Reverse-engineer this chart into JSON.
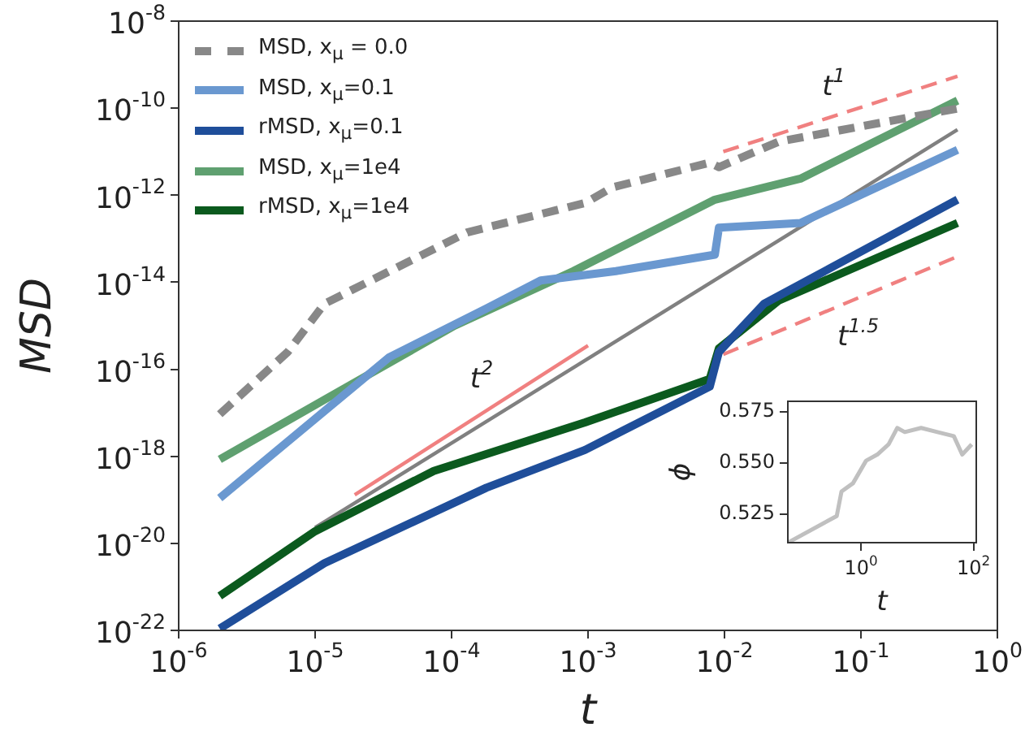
{
  "chart_data": [
    {
      "type": "line",
      "xlabel": "t",
      "ylabel": "MSD",
      "log": "xy",
      "legend": "top left",
      "marker": "none",
      "line_style": "solid",
      "xlim": [
        1e-06,
        1
      ],
      "ylim": [
        1e-22,
        1e-08
      ],
      "xticks": [
        {
          "value": 1e-06,
          "label": "10$^{-6}$"
        },
        {
          "value": 1e-05,
          "label": "10$^{-5}$"
        },
        {
          "value": 0.0001,
          "label": "10$^{-4}$"
        },
        {
          "value": 0.001,
          "label": "10$^{-3}$"
        },
        {
          "value": 0.01,
          "label": "10$^{-2}$"
        },
        {
          "value": 0.1,
          "label": "10$^{-1}$"
        },
        {
          "value": 1,
          "label": "10$^{0}$"
        }
      ],
      "yticks": [
        {
          "value": 1e-22,
          "label": "10$^{-22}$"
        },
        {
          "value": 1e-20,
          "label": "10$^{-20}$"
        },
        {
          "value": 1e-18,
          "label": "10$^{-18}$"
        },
        {
          "value": 1e-16,
          "label": "10$^{-16}$"
        },
        {
          "value": 1e-14,
          "label": "10$^{-14}$"
        },
        {
          "value": 1e-12,
          "label": "10$^{-12}$"
        },
        {
          "value": 1e-10,
          "label": "10$^{-10}$"
        },
        {
          "value": 1e-08,
          "label": "10$^{-8}$"
        }
      ],
      "series": [
        {
          "name": "MSD, x$_{μ}$ = 0.0",
          "color": "#888888",
          "line_style": "dashed",
          "x": [
            2e-06,
            6.3e-06,
            1.17e-05,
            0.00013,
            0.00095,
            0.0015,
            0.0078,
            0.0091,
            0.025,
            0.51
          ],
          "values": [
            9.3e-18,
            2.5e-16,
            3.2e-15,
            1.4e-13,
            6.6e-13,
            1.5e-12,
            5.6e-12,
            4.4e-12,
            1.7e-11,
            9.8e-11
          ]
        },
        {
          "name": "MSD, x$_{μ}$=0.1",
          "color": "#6a98d0",
          "x": [
            2e-06,
            3.5e-05,
            0.00018,
            0.00045,
            0.0016,
            0.0085,
            0.0091,
            0.036,
            0.51
          ],
          "values": [
            1.1e-19,
            1.9e-16,
            2.5e-15,
            1.1e-14,
            1.8e-14,
            4.3e-14,
            1.8e-13,
            2.3e-13,
            1.1e-11
          ]
        },
        {
          "name": "rMSD, x$_{μ}$=0.1",
          "color": "#1f4e9a",
          "x": [
            2e-06,
            1.17e-05,
            0.00018,
            0.00095,
            0.0078,
            0.0091,
            0.0195,
            0.51
          ],
          "values": [
            1.1e-22,
            3.5e-21,
            1.9e-19,
            1.4e-18,
            4e-17,
            2.5e-16,
            3.2e-15,
            7.9e-13
          ]
        },
        {
          "name": "MSD, x$_{μ}$=1e4",
          "color": "#5fa070",
          "x": [
            2e-06,
            1.17e-05,
            0.000105,
            0.00078,
            0.0085,
            0.036,
            0.51
          ],
          "values": [
            8.5e-19,
            2e-17,
            1e-15,
            1.8e-14,
            7.9e-13,
            2.4e-12,
            1.5e-10
          ]
        },
        {
          "name": "rMSD, x$_{μ}$=1e4",
          "color": "#0b5a1e",
          "x": [
            2e-06,
            1e-05,
            7.4e-05,
            0.00095,
            0.0078,
            0.0091,
            0.025,
            0.51
          ],
          "values": [
            6.2e-22,
            1.9e-20,
            4.6e-19,
            6e-18,
            6e-17,
            3e-16,
            3.8e-15,
            2.3e-13
          ]
        },
        {
          "color": "#808080",
          "x": [
            1e-05,
            0.51
          ],
          "values": [
            2.3e-20,
            3.2e-11
          ]
        },
        {
          "color": "#f08080",
          "x": [
            1.95e-05,
            0.001
          ],
          "values": [
            1.3e-19,
            3.5e-16
          ]
        },
        {
          "color": "#f08080",
          "line_style": "dashed",
          "x": [
            0.0098,
            0.51
          ],
          "values": [
            1e-11,
            5.4e-10
          ]
        },
        {
          "color": "#f08080",
          "line_style": "dashed",
          "x": [
            0.0098,
            0.51
          ],
          "values": [
            2.2e-16,
            3.9e-14
          ]
        }
      ],
      "annotations": [
        "t$^{1}$",
        "t$^{2}$",
        "t$^{1.5}$"
      ]
    },
    {
      "type": "line",
      "xlabel": "t",
      "ylabel": "ϕ",
      "log": "x",
      "marker": "none",
      "line_style": "solid",
      "xlim": [
        0.05,
        112
      ],
      "ylim": [
        0.511,
        0.58
      ],
      "xticks": [
        {
          "value": 1,
          "label": "10$^{0}$"
        },
        {
          "value": 100,
          "label": "10$^{2}$"
        }
      ],
      "yticks": [
        0.525,
        {
          "value": 0.55,
          "label": "0.550"
        },
        0.575
      ],
      "series": [
        {
          "color": "#c0c0c0",
          "x": [
            0.05,
            0.37,
            0.45,
            0.72,
            1.23,
            1.95,
            3.1,
            4.4,
            6.0,
            11.7,
            22.9,
            44.7,
            63,
            93
          ],
          "values": [
            0.511,
            0.524,
            0.536,
            0.54,
            0.551,
            0.554,
            0.559,
            0.567,
            0.565,
            0.567,
            0.565,
            0.563,
            0.554,
            0.559
          ]
        }
      ]
    }
  ]
}
